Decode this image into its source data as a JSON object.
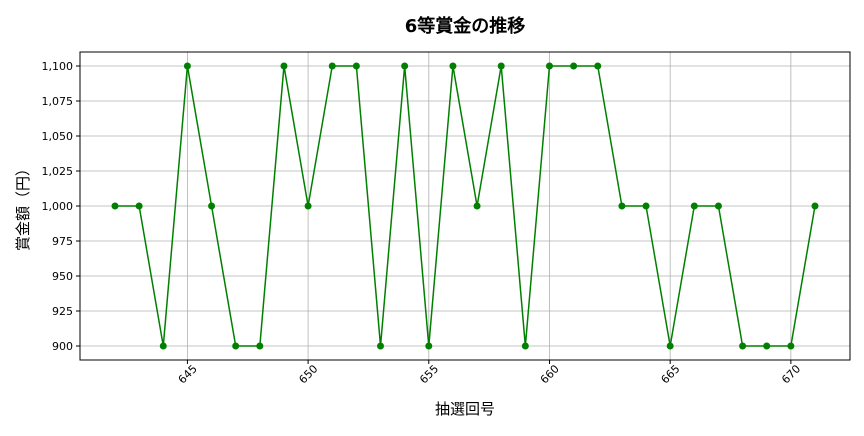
{
  "chart_data": {
    "type": "line",
    "title": "6等賞金の推移",
    "xlabel": "抽選回号",
    "ylabel": "賞金額（円）",
    "x": [
      642,
      643,
      644,
      645,
      646,
      647,
      648,
      649,
      650,
      651,
      652,
      653,
      654,
      655,
      656,
      657,
      658,
      659,
      660,
      661,
      662,
      663,
      664,
      665,
      666,
      667,
      668,
      669,
      670,
      671
    ],
    "series": [
      {
        "values": [
          1000,
          1000,
          900,
          1100,
          1000,
          900,
          900,
          1100,
          1000,
          1100,
          1100,
          900,
          1100,
          900,
          1100,
          1000,
          1100,
          900,
          1100,
          1100,
          1100,
          1000,
          1000,
          900,
          1000,
          1000,
          900,
          900,
          900,
          1000
        ]
      }
    ],
    "xticks": [
      645,
      650,
      655,
      660,
      665,
      670
    ],
    "yticks": [
      900,
      925,
      950,
      975,
      1000,
      1025,
      1050,
      1075,
      1100
    ],
    "ytick_labels": [
      "900",
      "925",
      "950",
      "975",
      "1,000",
      "1,025",
      "1,050",
      "1,075",
      "1,100"
    ],
    "xlim": [
      640.55,
      672.45
    ],
    "ylim": [
      890,
      1110
    ],
    "grid": true,
    "line_color": "#008000",
    "marker": "circle"
  }
}
